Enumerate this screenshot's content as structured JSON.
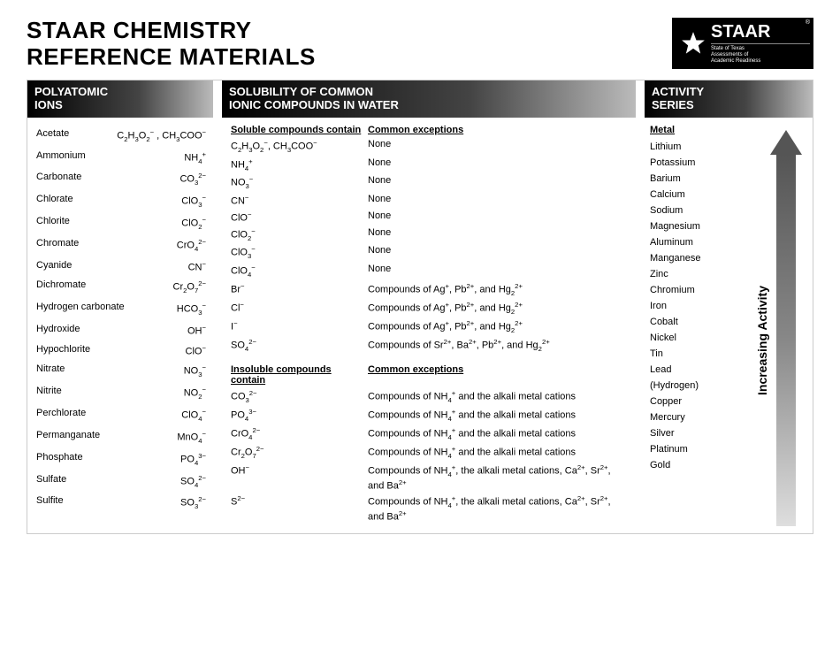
{
  "title_line1": "STAAR CHEMISTRY",
  "title_line2": "REFERENCE MATERIALS",
  "logo": {
    "name": "STAAR",
    "reg": "®",
    "sub1": "State of Texas",
    "sub2": "Assessments of",
    "sub3": "Academic Readiness"
  },
  "poly": {
    "header": "POLYATOMIC IONS",
    "items": [
      {
        "name": "Acetate",
        "formula": "C<sub>2</sub>H<sub>3</sub>O<sub>2</sub><sup>−</sup> , CH<sub>3</sub>COO<sup>−</sup>"
      },
      {
        "name": "Ammonium",
        "formula": "NH<sub>4</sub><sup>+</sup>"
      },
      {
        "name": "Carbonate",
        "formula": "CO<sub>3</sub><sup>2−</sup>"
      },
      {
        "name": "Chlorate",
        "formula": "ClO<sub>3</sub><sup>−</sup>"
      },
      {
        "name": "Chlorite",
        "formula": "ClO<sub>2</sub><sup>−</sup>"
      },
      {
        "name": "Chromate",
        "formula": "CrO<sub>4</sub><sup>2−</sup>"
      },
      {
        "name": "Cyanide",
        "formula": "CN<sup>−</sup>"
      },
      {
        "name": "Dichromate",
        "formula": "Cr<sub>2</sub>O<sub>7</sub><sup>2−</sup>"
      },
      {
        "name": "Hydrogen carbonate",
        "formula": "HCO<sub>3</sub><sup>−</sup>"
      },
      {
        "name": "Hydroxide",
        "formula": "OH<sup>−</sup>"
      },
      {
        "name": "Hypochlorite",
        "formula": "ClO<sup>−</sup>"
      },
      {
        "name": "Nitrate",
        "formula": "NO<sub>3</sub><sup>−</sup>"
      },
      {
        "name": "Nitrite",
        "formula": "NO<sub>2</sub><sup>−</sup>"
      },
      {
        "name": "Perchlorate",
        "formula": "ClO<sub>4</sub><sup>−</sup>"
      },
      {
        "name": "Permanganate",
        "formula": "MnO<sub>4</sub><sup>−</sup>"
      },
      {
        "name": "Phosphate",
        "formula": "PO<sub>4</sub><sup>3−</sup>"
      },
      {
        "name": "Sulfate",
        "formula": "SO<sub>4</sub><sup>2−</sup>"
      },
      {
        "name": "Sulfite",
        "formula": "SO<sub>3</sub><sup>2−</sup>"
      }
    ]
  },
  "sol": {
    "header": "SOLUBILITY OF COMMON IONIC COMPOUNDS IN WATER",
    "section1": {
      "h_left": "Soluble compounds contain",
      "h_right": "Common exceptions",
      "rows": [
        {
          "ion": "C<sub>2</sub>H<sub>3</sub>O<sub>2</sub><sup>−</sup>, CH<sub>3</sub>COO<sup>−</sup>",
          "ex": "None"
        },
        {
          "ion": "NH<sub>4</sub><sup>+</sup>",
          "ex": "None"
        },
        {
          "ion": "NO<sub>3</sub><sup>−</sup>",
          "ex": "None"
        },
        {
          "ion": "CN<sup>−</sup>",
          "ex": "None"
        },
        {
          "ion": "ClO<sup>−</sup>",
          "ex": "None"
        },
        {
          "ion": "ClO<sub>2</sub><sup>−</sup>",
          "ex": "None"
        },
        {
          "ion": "ClO<sub>3</sub><sup>−</sup>",
          "ex": "None"
        },
        {
          "ion": "ClO<sub>4</sub><sup>−</sup>",
          "ex": "None"
        },
        {
          "ion": "Br<sup>−</sup>",
          "ex": "Compounds of Ag<sup>+</sup>, Pb<sup>2+</sup>, and Hg<sub>2</sub><sup>2+</sup>"
        },
        {
          "ion": "Cl<sup>−</sup>",
          "ex": "Compounds of Ag<sup>+</sup>, Pb<sup>2+</sup>, and Hg<sub>2</sub><sup>2+</sup>"
        },
        {
          "ion": "I<sup>−</sup>",
          "ex": "Compounds of Ag<sup>+</sup>, Pb<sup>2+</sup>, and Hg<sub>2</sub><sup>2+</sup>"
        },
        {
          "ion": "SO<sub>4</sub><sup>2−</sup>",
          "ex": "Compounds of Sr<sup>2+</sup>, Ba<sup>2+</sup>, Pb<sup>2+</sup>, and Hg<sub>2</sub><sup>2+</sup>"
        }
      ]
    },
    "section2": {
      "h_left": "Insoluble compounds contain",
      "h_right": "Common exceptions",
      "rows": [
        {
          "ion": "CO<sub>3</sub><sup>2−</sup>",
          "ex": "Compounds of NH<sub>4</sub><sup>+</sup> and the alkali metal cations"
        },
        {
          "ion": "PO<sub>4</sub><sup>3−</sup>",
          "ex": "Compounds of NH<sub>4</sub><sup>+</sup> and the alkali metal cations"
        },
        {
          "ion": "CrO<sub>4</sub><sup>2−</sup>",
          "ex": "Compounds of NH<sub>4</sub><sup>+</sup> and the alkali metal cations"
        },
        {
          "ion": "Cr<sub>2</sub>O<sub>7</sub><sup>2−</sup>",
          "ex": "Compounds of NH<sub>4</sub><sup>+</sup> and the alkali metal cations"
        },
        {
          "ion": "OH<sup>−</sup>",
          "ex": "Compounds of NH<sub>4</sub><sup>+</sup>, the alkali metal cations, Ca<sup>2+</sup>, Sr<sup>2+</sup>, and Ba<sup>2+</sup>"
        },
        {
          "ion": "S<sup>2−</sup>",
          "ex": "Compounds of NH<sub>4</sub><sup>+</sup>, the alkali metal cations, Ca<sup>2+</sup>, Sr<sup>2+</sup>, and Ba<sup>2+</sup>"
        }
      ]
    }
  },
  "act": {
    "header": "ACTIVITY SERIES",
    "list_header": "Metal",
    "items": [
      "Lithium",
      "Potassium",
      "Barium",
      "Calcium",
      "Sodium",
      "Magnesium",
      "Aluminum",
      "Manganese",
      "Zinc",
      "Chromium",
      "Iron",
      "Cobalt",
      "Nickel",
      "Tin",
      "Lead",
      "(Hydrogen)",
      "Copper",
      "Mercury",
      "Silver",
      "Platinum",
      "Gold"
    ],
    "arrow_label": "Increasing Activity"
  }
}
